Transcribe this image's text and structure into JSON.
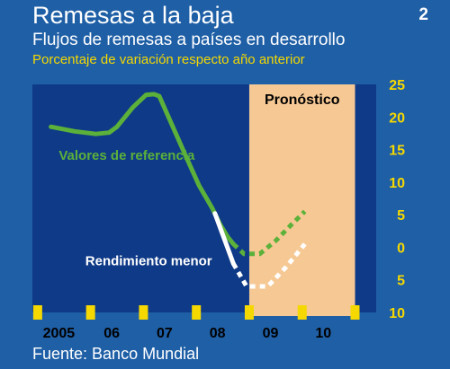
{
  "header": {
    "title": "Remesas a la baja",
    "subtitle": "Flujos de remesas a países en desarrollo",
    "unit": "Porcentaje de variación respecto año anterior",
    "figure_number": "2"
  },
  "footer": {
    "source": "Fuente: Banco Mundial"
  },
  "colors": {
    "background": "#1f5fa6",
    "plot_area": "#0f3a87",
    "forecast_band": "#f5c894",
    "reference_series": "#5bb13a",
    "lower_series": "#ffffff",
    "ticks": "#f5d800"
  },
  "chart_data": {
    "type": "line",
    "title": "Remesas a la baja",
    "ylim": [
      -10,
      25
    ],
    "xlim": [
      2004.5,
      2011.0
    ],
    "x_tick_labels": [
      {
        "x": 2005,
        "label": "2005"
      },
      {
        "x": 2006,
        "label": "06"
      },
      {
        "x": 2007,
        "label": "07"
      },
      {
        "x": 2008,
        "label": "08"
      },
      {
        "x": 2009,
        "label": "09"
      },
      {
        "x": 2010,
        "label": "10"
      }
    ],
    "x_ticks": [
      2004.6,
      2005.6,
      2006.6,
      2007.6,
      2008.6,
      2009.6,
      2010.6
    ],
    "y_ticks": [
      {
        "value": 25,
        "label": "25"
      },
      {
        "value": 20,
        "label": "20"
      },
      {
        "value": 15,
        "label": "15"
      },
      {
        "value": 10,
        "label": "10"
      },
      {
        "value": 5,
        "label": "5"
      },
      {
        "value": 0,
        "label": "0"
      },
      {
        "value": -5,
        "label": "5"
      },
      {
        "value": -10,
        "label": "10"
      }
    ],
    "forecast": {
      "label": "Pronóstico",
      "x_range": [
        2008.6,
        2010.6
      ]
    },
    "series": [
      {
        "name": "Valores de referencia",
        "color": "#5bb13a",
        "points": [
          [
            2004.85,
            18.5
          ],
          [
            2005.3,
            17.8
          ],
          [
            2005.7,
            17.4
          ],
          [
            2005.95,
            17.6
          ],
          [
            2006.1,
            18.5
          ],
          [
            2006.4,
            21.5
          ],
          [
            2006.65,
            23.4
          ],
          [
            2006.8,
            23.5
          ],
          [
            2006.9,
            23.2
          ],
          [
            2007.1,
            19.5
          ],
          [
            2007.4,
            14.0
          ],
          [
            2007.65,
            9.5
          ],
          [
            2007.9,
            6.0
          ],
          [
            2008.05,
            3.5
          ],
          [
            2008.2,
            1.5
          ],
          [
            2008.3,
            0.5
          ]
        ],
        "forecast_points": [
          [
            2008.3,
            0.5
          ],
          [
            2008.5,
            -1.0
          ],
          [
            2008.8,
            -1.0
          ],
          [
            2009.1,
            1.0
          ],
          [
            2009.4,
            3.5
          ],
          [
            2009.65,
            5.5
          ]
        ]
      },
      {
        "name": "Rendimiento menor",
        "color": "#ffffff",
        "points": [
          [
            2007.95,
            5.2
          ],
          [
            2008.3,
            -2.5
          ]
        ],
        "forecast_points": [
          [
            2008.3,
            -2.5
          ],
          [
            2008.55,
            -6.0
          ],
          [
            2008.95,
            -6.0
          ],
          [
            2009.3,
            -3.0
          ],
          [
            2009.65,
            0.5
          ]
        ]
      }
    ],
    "annotations": [
      {
        "text": "Valores de referencia",
        "x": 2005.0,
        "y": 13.4,
        "color": "#5bb13a"
      },
      {
        "text": "Rendimiento menor",
        "x": 2005.5,
        "y": -2.8,
        "color": "#ffffff"
      }
    ]
  }
}
